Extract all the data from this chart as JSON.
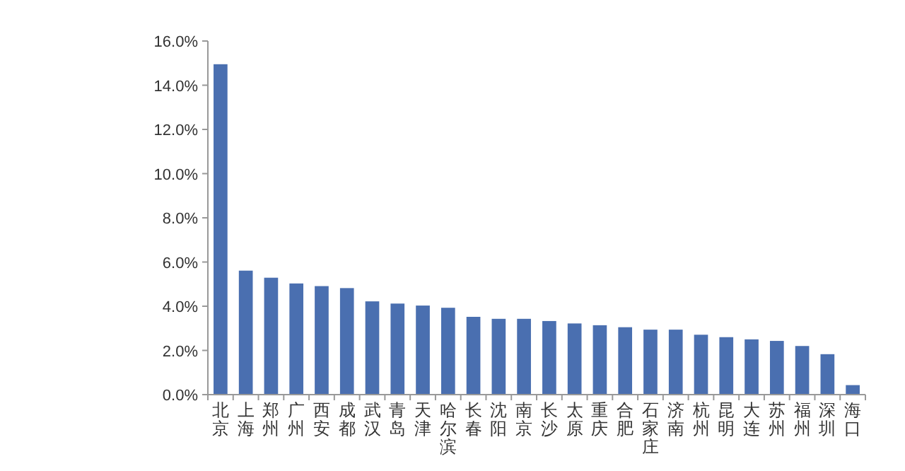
{
  "chart_data": {
    "type": "bar",
    "categories": [
      "北京",
      "上海",
      "郑州",
      "广州",
      "西安",
      "成都",
      "武汉",
      "青岛",
      "天津",
      "哈尔滨",
      "长春",
      "沈阳",
      "南京",
      "长沙",
      "太原",
      "重庆",
      "合肥",
      "石家庄",
      "济南",
      "杭州",
      "昆明",
      "大连",
      "苏州",
      "福州",
      "深圳",
      "海口"
    ],
    "values": [
      14.95,
      5.61,
      5.29,
      5.03,
      4.91,
      4.82,
      4.22,
      4.12,
      4.03,
      3.93,
      3.52,
      3.43,
      3.43,
      3.33,
      3.22,
      3.14,
      3.05,
      2.94,
      2.94,
      2.71,
      2.6,
      2.5,
      2.43,
      2.2,
      1.83,
      0.43
    ],
    "color": "#4a6fb0",
    "ylim": [
      0,
      16
    ],
    "yticks": [
      {
        "value": 0,
        "label": "0.0%"
      },
      {
        "value": 2,
        "label": "2.0%"
      },
      {
        "value": 4,
        "label": "4.0%"
      },
      {
        "value": 6,
        "label": "6.0%"
      },
      {
        "value": 8,
        "label": "8.0%"
      },
      {
        "value": 10,
        "label": "10.0%"
      },
      {
        "value": 12,
        "label": "12.0%"
      },
      {
        "value": 14,
        "label": "14.0%"
      },
      {
        "value": 16,
        "label": "16.0%"
      }
    ],
    "grid": false
  }
}
